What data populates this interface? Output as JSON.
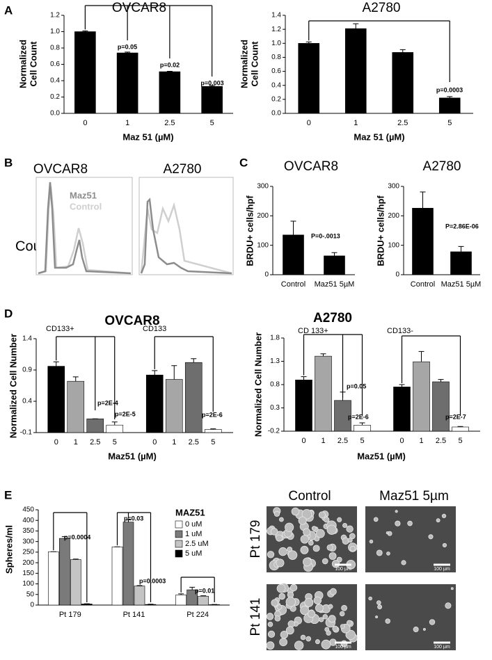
{
  "panel_labels": [
    "A",
    "B",
    "C",
    "D",
    "E"
  ],
  "flow": {
    "titles": [
      "OVCAR8",
      "A2780"
    ],
    "legend": [
      "Maz51",
      "Control"
    ],
    "ylabel": "Counts"
  },
  "micrographs": {
    "columns": [
      "Control",
      "Maz51 5µm"
    ],
    "rows": [
      "Pt 179",
      "Pt 141"
    ],
    "scale_bar": "100 µm"
  },
  "chart_data": [
    {
      "type": "bar",
      "title": "OVCAR8",
      "ylabel": [
        "Normalized",
        "Cell Count"
      ],
      "xlabel": "Maz 51 (µM)",
      "categories": [
        "0",
        "1",
        "2.5",
        "5"
      ],
      "series": [
        {
          "color": "#000000",
          "values": [
            1.0,
            0.74,
            0.51,
            0.33
          ],
          "errors": [
            0.01,
            0.01,
            0.005,
            0.01
          ]
        }
      ],
      "ylim": [
        0,
        1.2
      ],
      "yticks": [
        {
          "value": 0,
          "label": "0.0"
        },
        0.2,
        0.4,
        0.6,
        0.8,
        {
          "value": 1,
          "label": "1.0"
        },
        1.2
      ],
      "annotations": [
        "p=0.05",
        "p=0.02",
        "p=0.003"
      ]
    },
    {
      "type": "bar",
      "title": "A2780",
      "ylabel": [
        "Normalized",
        "Cell Count"
      ],
      "xlabel": "Maz 51 (µM)",
      "categories": [
        "0",
        "1",
        "2.5",
        "5"
      ],
      "series": [
        {
          "color": "#000000",
          "values": [
            1.0,
            1.21,
            0.87,
            0.22
          ],
          "errors": [
            0.02,
            0.07,
            0.04,
            0.02
          ]
        }
      ],
      "ylim": [
        0,
        1.4
      ],
      "yticks": [
        {
          "value": 0,
          "label": "0.0"
        },
        0.2,
        0.4,
        0.6,
        0.8,
        {
          "value": 1,
          "label": "1.0"
        },
        1.2,
        1.4
      ],
      "annotations": [
        "p=0.0003"
      ]
    },
    {
      "type": "bar",
      "title": "OVCAR8",
      "ylabel": "BRDU+ cells/hpf",
      "categories": [
        "Control",
        "Maz51 5µM"
      ],
      "series": [
        {
          "color": "#000000",
          "values": [
            135,
            64
          ],
          "errors": [
            47,
            11
          ]
        }
      ],
      "ylim": [
        0,
        300
      ],
      "yticks": [
        0,
        100,
        200,
        300
      ],
      "annotations": [
        "P=0-.0013"
      ]
    },
    {
      "type": "bar",
      "title": "A2780",
      "ylabel": "BRDU+ cells/hpf",
      "categories": [
        "Control",
        "Maz51 5µM"
      ],
      "series": [
        {
          "color": "#000000",
          "values": [
            226,
            78
          ],
          "errors": [
            55,
            18
          ]
        }
      ],
      "ylim": [
        0,
        300
      ],
      "yticks": [
        0,
        100,
        200,
        300
      ],
      "annotations": [
        "P=2.86E-06"
      ]
    },
    {
      "type": "bar",
      "title": "OVCAR8",
      "ylabel": "Normalized Cell Number",
      "xlabel": "Maz51 (µM)",
      "categories": [
        "CD133+",
        "CD133"
      ],
      "series": [
        {
          "name": "0",
          "color": "#000000",
          "values": [
            0.96,
            0.82
          ],
          "errors": [
            0.07,
            0.07
          ]
        },
        {
          "name": "1",
          "color": "#a6a6a6",
          "values": [
            0.72,
            0.75
          ],
          "errors": [
            0.07,
            0.22
          ]
        },
        {
          "name": "2.5",
          "color": "#6e6e6e",
          "values": [
            0.12,
            1.02
          ],
          "errors": [
            0,
            0.06
          ]
        },
        {
          "name": "5",
          "color": "#ffffff",
          "values": [
            0.02,
            -0.05
          ],
          "errors": [
            0.05,
            0.01
          ]
        }
      ],
      "ylim": [
        -0.1,
        1.4
      ],
      "yticks": [
        -0.1,
        0.4,
        0.9,
        1.4
      ],
      "annotations": [
        "p=2E-4",
        "p=2E-5",
        "p=2E-6"
      ]
    },
    {
      "type": "bar",
      "title": "A2780",
      "ylabel": "Normalized Cell Number",
      "xlabel": "Maz51 (µM)",
      "categories": [
        "CD 133+",
        "CD133-"
      ],
      "series": [
        {
          "name": "0",
          "color": "#000000",
          "values": [
            0.9,
            0.75
          ],
          "errors": [
            0.07,
            0.05
          ]
        },
        {
          "name": "1",
          "color": "#a6a6a6",
          "values": [
            1.41,
            1.29
          ],
          "errors": [
            0.05,
            0.22
          ]
        },
        {
          "name": "2.5",
          "color": "#6e6e6e",
          "values": [
            0.46,
            0.86
          ],
          "errors": [
            0.18,
            0.05
          ]
        },
        {
          "name": "5",
          "color": "#ffffff",
          "values": [
            -0.07,
            -0.11
          ],
          "errors": [
            0.05,
            0.01
          ]
        }
      ],
      "ylim": [
        -0.2,
        1.8
      ],
      "yticks": [
        -0.2,
        0.3,
        0.8,
        1.3,
        1.8
      ],
      "annotations": [
        "p=0.05",
        "p=2E-6",
        "p=2E-7"
      ]
    },
    {
      "type": "bar",
      "ylabel": "Spheres/ml",
      "legend_title": "MAZ51",
      "categories": [
        "Pt 179",
        "Pt 141",
        "Pt 224"
      ],
      "series": [
        {
          "name": "0 uM",
          "color": "#ffffff",
          "values": [
            252,
            275,
            48
          ],
          "errors": [
            0,
            0,
            5
          ]
        },
        {
          "name": "1 uM",
          "color": "#7a7a7a",
          "values": [
            315,
            392,
            72
          ],
          "errors": [
            8,
            10,
            12
          ]
        },
        {
          "name": "2.5 uM",
          "color": "#c4c4c4",
          "values": [
            215,
            90,
            42
          ],
          "errors": [
            2,
            2,
            2
          ]
        },
        {
          "name": "5 uM",
          "color": "#000000",
          "values": [
            5,
            3,
            2
          ],
          "errors": [
            1,
            1,
            1
          ]
        }
      ],
      "ylim": [
        0,
        450
      ],
      "yticks": [
        0,
        50,
        100,
        150,
        200,
        250,
        300,
        350,
        400,
        450
      ],
      "annotations": [
        "p=0.0004",
        "p=0.03",
        "p=0.0003",
        "p=0.01"
      ]
    }
  ]
}
